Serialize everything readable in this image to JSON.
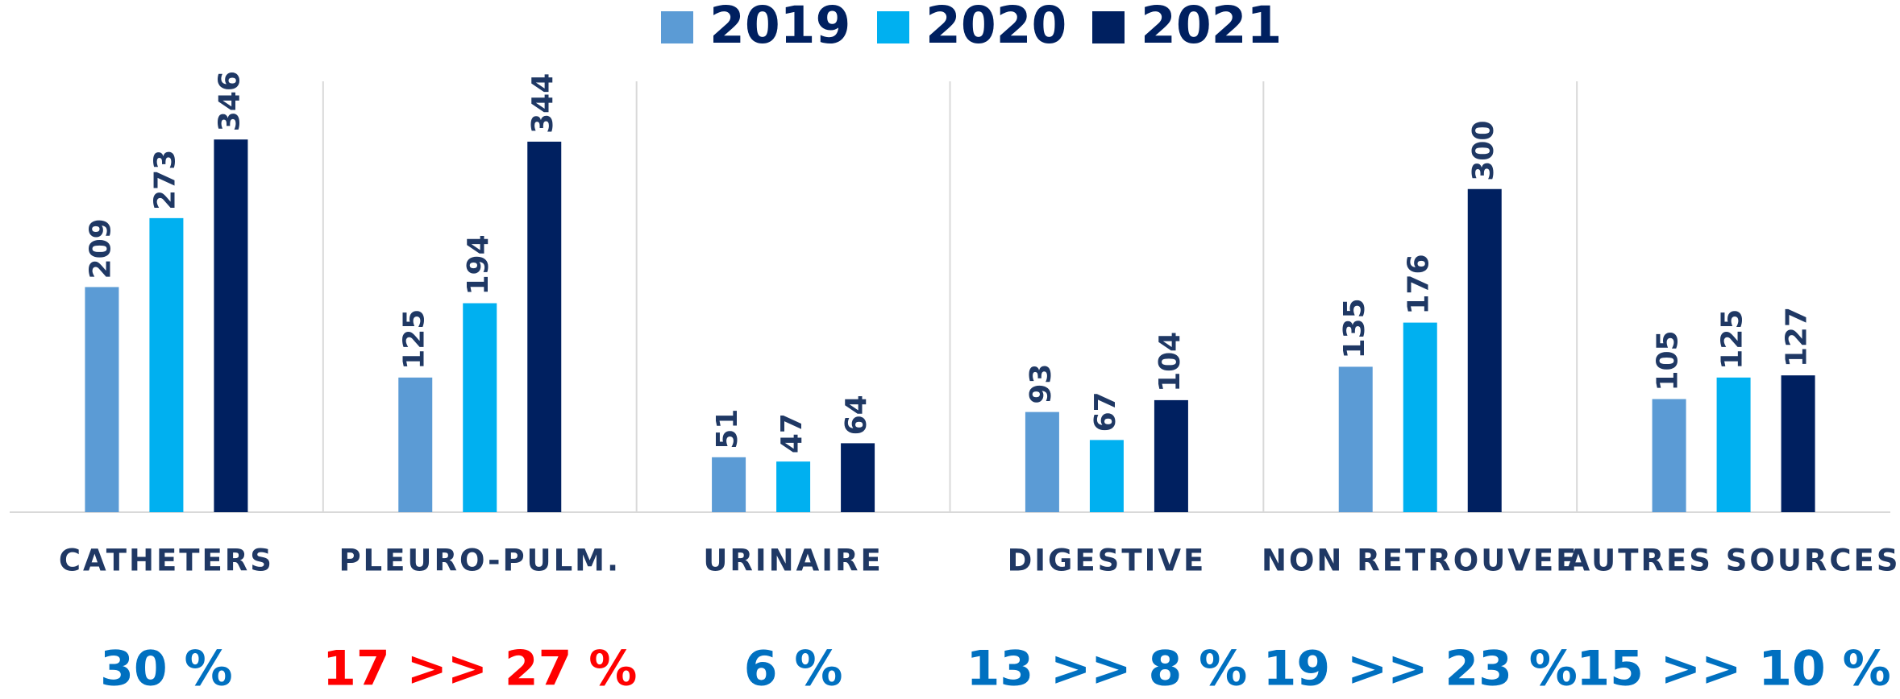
{
  "chart_data": {
    "type": "bar",
    "categories": [
      "CATHETERS",
      "PLEURO-PULM.",
      "URINAIRE",
      "DIGESTIVE",
      "NON RETROUVEE",
      "AUTRES SOURCES"
    ],
    "series": [
      {
        "name": "2019",
        "color": "#5b9bd5",
        "values": [
          209,
          125,
          51,
          93,
          135,
          105
        ]
      },
      {
        "name": "2020",
        "color": "#00b0f0",
        "values": [
          273,
          194,
          47,
          67,
          176,
          125
        ]
      },
      {
        "name": "2021",
        "color": "#002060",
        "values": [
          346,
          344,
          64,
          104,
          300,
          127
        ]
      }
    ],
    "ylim": [
      0,
      400
    ],
    "notes": [
      {
        "text": "30 %",
        "color": "#0070c0"
      },
      {
        "text": "17 >> 27 %",
        "color": "#ff0000"
      },
      {
        "text": "6 %",
        "color": "#0070c0"
      },
      {
        "text": "13 >> 8 %",
        "color": "#0070c0"
      },
      {
        "text": "19 >> 23 %",
        "color": "#0070c0"
      },
      {
        "text": "15 >> 10 %",
        "color": "#0070c0"
      }
    ]
  }
}
